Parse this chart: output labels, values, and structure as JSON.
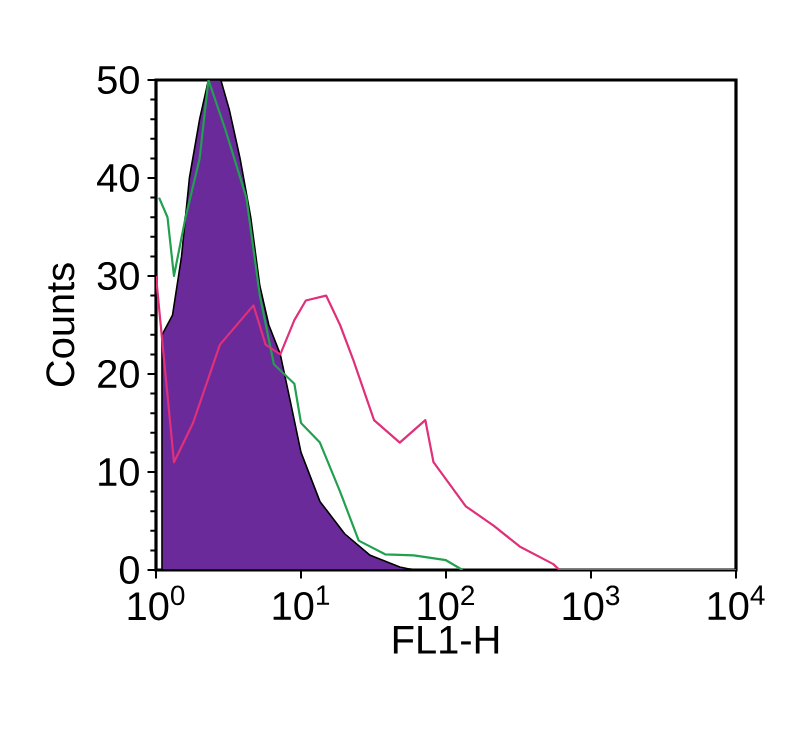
{
  "chart_data": {
    "type": "line",
    "xlabel": "FL1-H",
    "ylabel": "Counts",
    "log": "x",
    "xlim": [
      1,
      10000
    ],
    "ylim": [
      0,
      50
    ],
    "xticks": [
      {
        "value": 1,
        "label": "10$^{0}$"
      },
      {
        "value": 10,
        "label": "10$^{1}$"
      },
      {
        "value": 100,
        "label": "10$^{2}$"
      },
      {
        "value": 1000,
        "label": "10$^{3}$"
      },
      {
        "value": 10000,
        "label": "10$^{4}$"
      }
    ],
    "yticks": [
      0,
      10,
      20,
      30,
      40,
      50
    ],
    "grid": false,
    "marker": "none",
    "series": [
      {
        "type": "area",
        "color": "#6a2a9a",
        "x": [
          1.1,
          1.3,
          1.5,
          1.7,
          2.0,
          2.3,
          2.8,
          3.2,
          3.8,
          4.5,
          5.2,
          6,
          7.2,
          8.5,
          10,
          13.5,
          20,
          30,
          48,
          60
        ],
        "values": [
          24,
          26,
          32,
          40,
          46,
          50,
          50,
          47,
          42,
          36,
          29,
          25,
          22,
          17,
          12,
          7,
          3.7,
          1.5,
          0.3,
          0
        ]
      },
      {
        "color": "#22a050",
        "x": [
          1.05,
          1.2,
          1.33,
          1.6,
          2.0,
          2.3,
          3.0,
          4.2,
          5.2,
          6.5,
          9,
          10,
          13.5,
          18.6,
          25,
          38,
          60,
          100,
          130
        ],
        "values": [
          38,
          36,
          30,
          36,
          42,
          50,
          45,
          38,
          28,
          21,
          19,
          15,
          13,
          8,
          3,
          1.6,
          1.5,
          1,
          0
        ]
      },
      {
        "color": "#e0307a",
        "x": [
          1.0,
          1.33,
          1.8,
          2.76,
          4.7,
          5.7,
          7.2,
          9,
          10.8,
          14.9,
          18.6,
          23,
          31.9,
          48,
          72,
          82,
          137,
          214,
          322,
          550,
          607,
          10000
        ],
        "values": [
          30,
          11,
          15,
          23,
          27,
          23,
          22,
          25.5,
          27.5,
          28,
          25,
          21.4,
          15.3,
          13,
          15.3,
          11,
          6.5,
          4.5,
          2.4,
          0.6,
          0,
          0
        ]
      }
    ]
  }
}
